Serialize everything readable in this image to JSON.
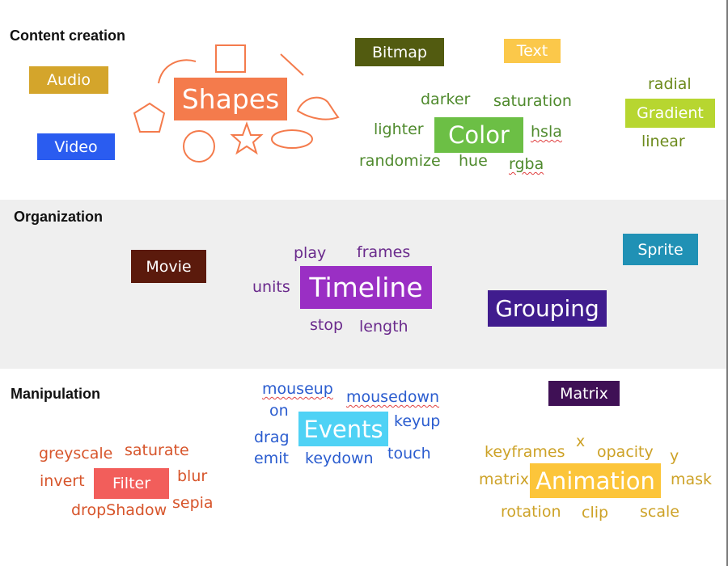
{
  "sections": {
    "content": "Content creation",
    "organization": "Organization",
    "manipulation": "Manipulation"
  },
  "content": {
    "audio": "Audio",
    "video": "Video",
    "shapes": "Shapes",
    "bitmap": "Bitmap",
    "text": "Text",
    "color": {
      "label": "Color",
      "darker": "darker",
      "saturation": "saturation",
      "lighter": "lighter",
      "hsla": "hsla",
      "randomize": "randomize",
      "hue": "hue",
      "rgba": "rgba"
    },
    "gradient": {
      "label": "Gradient",
      "radial": "radial",
      "linear": "linear"
    }
  },
  "organization": {
    "movie": "Movie",
    "sprite": "Sprite",
    "grouping": "Grouping",
    "timeline": {
      "label": "Timeline",
      "play": "play",
      "frames": "frames",
      "units": "units",
      "stop": "stop",
      "length": "length"
    }
  },
  "manipulation": {
    "matrix": "Matrix",
    "events": {
      "label": "Events",
      "mouseup": "mouseup",
      "mousedown": "mousedown",
      "on": "on",
      "keyup": "keyup",
      "drag": "drag",
      "emit": "emit",
      "keydown": "keydown",
      "touch": "touch"
    },
    "filter": {
      "label": "Filter",
      "greyscale": "greyscale",
      "saturate": "saturate",
      "invert": "invert",
      "blur": "blur",
      "dropShadow": "dropShadow",
      "sepia": "sepia"
    },
    "animation": {
      "label": "Animation",
      "keyframes": "keyframes",
      "x": "x",
      "opacity": "opacity",
      "y": "y",
      "matrix": "matrix",
      "mask": "mask",
      "rotation": "rotation",
      "clip": "clip",
      "scale": "scale"
    }
  },
  "colors": {
    "audio": "#d4a52b",
    "video": "#2a5cf0",
    "shapes": "#f47b4c",
    "bitmap": "#525b10",
    "text": "#fbc84a",
    "color": "#6cbf45",
    "color_words": "#4f8a2d",
    "gradient": "#b7d630",
    "gradient_words": "#6c8a1c",
    "org_band": "#efefef",
    "movie": "#5b1a0c",
    "sprite": "#2091b5",
    "grouping": "#401c8e",
    "timeline": "#9a2fc4",
    "timeline_words": "#6a2a8c",
    "matrix": "#3f1055",
    "events": "#4fd2f5",
    "events_words": "#2a5ccf",
    "filter": "#f25e5b",
    "filter_words": "#d7552b",
    "animation": "#fcc53a",
    "animation_words": "#cda227"
  }
}
